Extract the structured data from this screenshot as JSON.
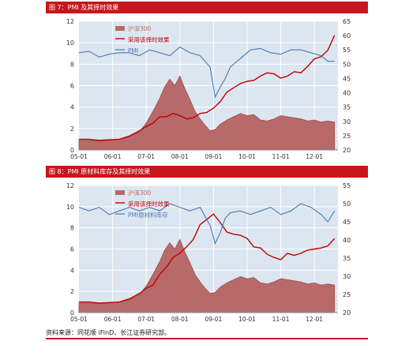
{
  "colors": {
    "bar": "#c8161d",
    "plot_bg": "#dce6f0",
    "grid": "#ffffff",
    "area": "#b86a6a",
    "area_top": "#9e4a4a",
    "line_red": "#c00000",
    "line_blue": "#4a7ab5"
  },
  "figures": [
    {
      "title": "图 7：PMI 及其择时效果"
    },
    {
      "title": "图 8：PMI 原材料库存及其择时效果"
    }
  ],
  "source": "资料来源：同花顺 iFinD、长江证券研究部。",
  "chart_data": [
    {
      "type": "line",
      "title": "图 7：PMI 及其择时效果",
      "x_ticks": [
        "05-01",
        "06-01",
        "07-01",
        "08-01",
        "09-01",
        "10-01",
        "11-01",
        "12-01"
      ],
      "y_left": {
        "lim": [
          0,
          12
        ],
        "ticks": [
          0,
          2,
          4,
          6,
          8,
          10,
          12
        ]
      },
      "y_right": {
        "lim": [
          20,
          65
        ],
        "ticks": [
          20,
          25,
          30,
          35,
          40,
          45,
          50,
          55,
          60,
          65
        ]
      },
      "series": [
        {
          "name": "沪深300",
          "type": "area",
          "axis": "left",
          "color": "#b86a6a",
          "x": [
            0,
            0.3,
            0.6,
            0.9,
            1.2,
            1.5,
            1.8,
            2.0,
            2.2,
            2.4,
            2.55,
            2.7,
            2.85,
            3.0,
            3.15,
            3.3,
            3.45,
            3.6,
            3.75,
            3.9,
            4.05,
            4.2,
            4.4,
            4.6,
            4.8,
            5.0,
            5.2,
            5.4,
            5.6,
            5.8,
            6.0,
            6.2,
            6.4,
            6.6,
            6.8,
            7.0,
            7.2,
            7.4,
            7.6
          ],
          "values": [
            0.9,
            0.9,
            0.85,
            0.9,
            1.0,
            1.2,
            1.7,
            2.5,
            3.6,
            4.8,
            5.9,
            6.6,
            6.0,
            6.9,
            5.7,
            4.7,
            3.6,
            2.9,
            2.3,
            1.8,
            1.9,
            2.4,
            2.8,
            3.1,
            3.4,
            3.2,
            3.3,
            2.8,
            2.7,
            2.9,
            3.2,
            3.1,
            3.0,
            2.9,
            2.7,
            2.8,
            2.6,
            2.7,
            2.6
          ]
        },
        {
          "name": "采用该择时效果",
          "type": "line",
          "axis": "left",
          "color": "#c00000",
          "x": [
            0,
            0.3,
            0.6,
            0.9,
            1.2,
            1.5,
            1.8,
            2.0,
            2.2,
            2.4,
            2.6,
            2.8,
            3.0,
            3.2,
            3.4,
            3.6,
            3.8,
            4.0,
            4.2,
            4.4,
            4.6,
            4.8,
            5.0,
            5.2,
            5.4,
            5.6,
            5.8,
            6.0,
            6.2,
            6.4,
            6.6,
            6.8,
            7.0,
            7.2,
            7.4,
            7.6
          ],
          "values": [
            1.0,
            1.0,
            0.9,
            0.95,
            1.0,
            1.3,
            1.8,
            2.2,
            2.5,
            3.1,
            3.1,
            3.4,
            3.2,
            2.9,
            3.0,
            3.4,
            3.5,
            3.9,
            4.5,
            5.4,
            5.8,
            6.2,
            6.4,
            6.5,
            6.9,
            7.2,
            7.1,
            6.7,
            6.9,
            7.3,
            7.2,
            7.8,
            8.5,
            8.7,
            9.3,
            10.7
          ]
        },
        {
          "name": "PMI",
          "type": "line",
          "axis": "right",
          "color": "#4a7ab5",
          "x": [
            0,
            0.3,
            0.6,
            0.9,
            1.2,
            1.5,
            1.8,
            2.1,
            2.4,
            2.7,
            3.0,
            3.3,
            3.6,
            3.9,
            4.05,
            4.2,
            4.35,
            4.5,
            4.8,
            5.1,
            5.4,
            5.7,
            6.0,
            6.3,
            6.6,
            6.9,
            7.2,
            7.4,
            7.6
          ],
          "values": [
            54,
            54.5,
            52.5,
            53.5,
            54,
            54,
            53,
            55,
            54,
            53,
            56,
            54,
            53,
            49,
            38.5,
            42,
            45,
            49,
            52,
            55,
            55.5,
            54,
            53.5,
            55,
            55,
            54,
            53,
            51,
            51
          ]
        }
      ]
    },
    {
      "type": "line",
      "title": "图 8：PMI 原材料库存及其择时效果",
      "x_ticks": [
        "05-01",
        "06-01",
        "07-01",
        "08-01",
        "09-01",
        "10-01",
        "11-01",
        "12-01"
      ],
      "y_left": {
        "lim": [
          0,
          12
        ],
        "ticks": [
          0,
          2,
          4,
          6,
          8,
          10,
          12
        ]
      },
      "y_right": {
        "lim": [
          20,
          55
        ],
        "ticks": [
          20,
          25,
          30,
          35,
          40,
          45,
          50,
          55
        ]
      },
      "series": [
        {
          "name": "沪深300",
          "type": "area",
          "axis": "left",
          "color": "#b86a6a",
          "x": [
            0,
            0.3,
            0.6,
            0.9,
            1.2,
            1.5,
            1.8,
            2.0,
            2.2,
            2.4,
            2.55,
            2.7,
            2.85,
            3.0,
            3.15,
            3.3,
            3.45,
            3.6,
            3.75,
            3.9,
            4.05,
            4.2,
            4.4,
            4.6,
            4.8,
            5.0,
            5.2,
            5.4,
            5.6,
            5.8,
            6.0,
            6.2,
            6.4,
            6.6,
            6.8,
            7.0,
            7.2,
            7.4,
            7.6
          ],
          "values": [
            0.9,
            0.9,
            0.85,
            0.9,
            1.0,
            1.2,
            1.7,
            2.5,
            3.6,
            4.8,
            5.9,
            6.6,
            6.0,
            6.9,
            5.7,
            4.7,
            3.6,
            2.9,
            2.3,
            1.8,
            1.9,
            2.4,
            2.8,
            3.1,
            3.4,
            3.2,
            3.3,
            2.8,
            2.7,
            2.9,
            3.2,
            3.1,
            3.0,
            2.9,
            2.7,
            2.8,
            2.6,
            2.7,
            2.6
          ]
        },
        {
          "name": "采用该择时效果",
          "type": "line",
          "axis": "left",
          "color": "#c00000",
          "x": [
            0,
            0.3,
            0.6,
            0.9,
            1.2,
            1.5,
            1.8,
            2.0,
            2.2,
            2.4,
            2.6,
            2.8,
            3.0,
            3.2,
            3.4,
            3.6,
            3.8,
            4.0,
            4.2,
            4.4,
            4.6,
            4.8,
            5.0,
            5.2,
            5.4,
            5.6,
            5.8,
            6.0,
            6.2,
            6.4,
            6.6,
            6.8,
            7.0,
            7.2,
            7.4,
            7.6
          ],
          "values": [
            1.0,
            1.0,
            0.9,
            0.95,
            1.0,
            1.3,
            1.8,
            2.3,
            2.6,
            3.6,
            4.3,
            5.2,
            5.6,
            6.2,
            6.9,
            8.3,
            8.8,
            9.3,
            8.5,
            7.6,
            7.4,
            7.3,
            7.0,
            6.2,
            6.1,
            5.5,
            5.2,
            5.0,
            5.6,
            5.4,
            5.6,
            5.9,
            6.0,
            6.1,
            6.3,
            7.0
          ]
        },
        {
          "name": "PMI原材料库存",
          "type": "line",
          "axis": "right",
          "color": "#4a7ab5",
          "x": [
            0,
            0.3,
            0.6,
            0.9,
            1.2,
            1.5,
            1.8,
            2.1,
            2.4,
            2.7,
            3.0,
            3.3,
            3.6,
            3.9,
            4.05,
            4.2,
            4.35,
            4.5,
            4.8,
            5.1,
            5.4,
            5.7,
            6.0,
            6.3,
            6.6,
            6.9,
            7.2,
            7.4,
            7.6
          ],
          "values": [
            49,
            48,
            49,
            47,
            48,
            49,
            48,
            49,
            48,
            50,
            49,
            48,
            49,
            44,
            39,
            42,
            46,
            47.5,
            48,
            47,
            48,
            49,
            47,
            48,
            50,
            49,
            47,
            45,
            48
          ]
        }
      ]
    }
  ]
}
